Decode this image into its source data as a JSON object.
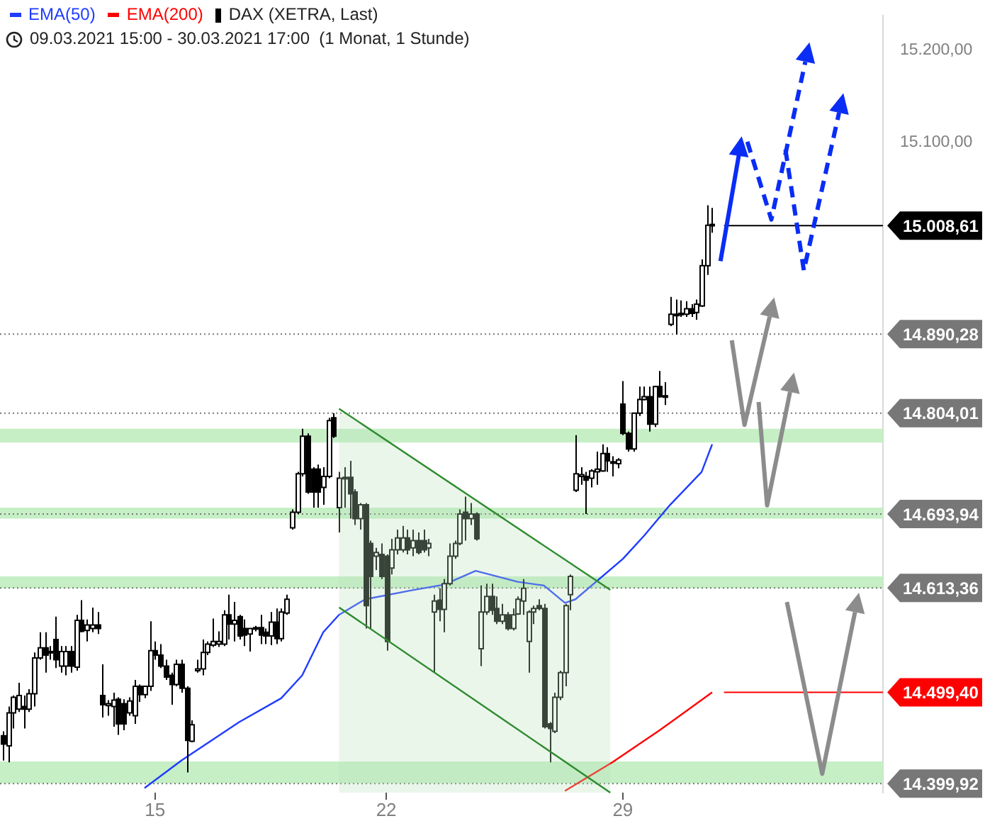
{
  "chart_data": {
    "type": "candlestick",
    "subtitle": "09.03.2021 15:00 - 30.03.2021 17:00  (1 Monat, 1 Stunde)",
    "categories": [
      null,
      null,
      null,
      null,
      null,
      null,
      null,
      null,
      null,
      null,
      null,
      null,
      null,
      null,
      null,
      null,
      null,
      null,
      null,
      null,
      null,
      null,
      null,
      null,
      null,
      null,
      null,
      null,
      null,
      "15",
      null,
      null,
      null,
      null,
      null,
      null,
      null,
      null,
      null,
      null,
      null,
      null,
      null,
      null,
      null,
      null,
      null,
      null,
      null,
      null,
      null,
      null,
      null,
      null,
      null,
      null,
      null,
      null,
      null,
      null,
      null,
      null,
      null,
      null,
      null,
      null,
      null,
      null,
      null,
      null,
      null,
      null,
      null,
      "22",
      null,
      null,
      null,
      null,
      null,
      null,
      null,
      null,
      null,
      null,
      null,
      null,
      null,
      null,
      null,
      null,
      null,
      null,
      null,
      null,
      null,
      null,
      null,
      null,
      null,
      null,
      null,
      null,
      null,
      null,
      null,
      null,
      null,
      null,
      null,
      null,
      null,
      null,
      null,
      null,
      null,
      null,
      null,
      null,
      "29",
      null,
      null,
      null,
      null,
      null,
      null,
      null,
      null,
      null,
      null,
      null,
      null,
      null,
      null,
      null,
      null,
      null,
      null,
      null,
      null,
      null,
      null,
      null,
      null,
      null,
      null,
      null,
      null,
      null,
      null,
      null,
      null,
      null,
      null,
      null,
      null,
      null,
      null,
      null,
      null,
      null,
      null,
      null,
      null,
      null,
      null,
      null,
      null,
      null
    ],
    "series": [
      {
        "name": "EMA(50)",
        "type": "line",
        "color": "#1f3cff",
        "values": [
          null,
          null,
          null,
          null,
          null,
          null,
          null,
          null,
          null,
          null,
          null,
          null,
          null,
          null,
          null,
          null,
          null,
          null,
          null,
          null,
          null,
          null,
          null,
          null,
          null,
          null,
          null,
          14395,
          null,
          null,
          null,
          null,
          null,
          null,
          14425,
          null,
          null,
          null,
          null,
          null,
          null,
          null,
          null,
          null,
          null,
          14467,
          null,
          null,
          null,
          null,
          null,
          null,
          null,
          14493,
          null,
          null,
          null,
          14518,
          null,
          null,
          null,
          14565,
          null,
          null,
          14584,
          null,
          null,
          null,
          null,
          14601,
          null,
          null,
          null,
          null,
          null,
          null,
          null,
          null,
          14611,
          null,
          null,
          null,
          null,
          null,
          14617,
          null,
          null,
          null,
          null,
          null,
          14632,
          null,
          null,
          null,
          null,
          null,
          null,
          null,
          14620,
          null,
          null,
          null,
          null,
          14616,
          null,
          null,
          null,
          14597,
          null,
          14601,
          null,
          null,
          null,
          null,
          null,
          null,
          null,
          null,
          14645,
          null,
          null,
          null,
          14670,
          null,
          null,
          null,
          null,
          14704,
          null,
          null,
          null,
          null,
          null,
          14740,
          null,
          14770,
          null,
          null,
          null,
          null,
          null,
          null,
          null,
          null,
          null,
          null,
          null,
          null,
          null,
          null,
          null,
          null,
          null,
          null,
          null,
          null,
          null,
          null,
          null,
          null,
          null,
          null,
          null,
          null,
          null,
          null,
          null,
          null
        ]
      },
      {
        "name": "EMA(200)",
        "type": "line",
        "color": "#ff0000",
        "values": [
          null,
          null,
          null,
          null,
          null,
          null,
          null,
          null,
          null,
          null,
          null,
          null,
          null,
          null,
          null,
          null,
          null,
          null,
          null,
          null,
          null,
          null,
          null,
          null,
          null,
          null,
          null,
          null,
          null,
          null,
          null,
          null,
          null,
          null,
          null,
          null,
          null,
          null,
          null,
          null,
          null,
          null,
          null,
          null,
          null,
          null,
          null,
          null,
          null,
          null,
          null,
          null,
          null,
          null,
          null,
          null,
          null,
          null,
          null,
          null,
          null,
          null,
          null,
          null,
          null,
          null,
          null,
          null,
          null,
          null,
          null,
          null,
          null,
          null,
          null,
          null,
          null,
          null,
          null,
          null,
          null,
          null,
          null,
          null,
          null,
          null,
          null,
          null,
          null,
          null,
          null,
          null,
          null,
          null,
          null,
          null,
          null,
          null,
          null,
          null,
          null,
          null,
          null,
          null,
          null,
          null,
          null,
          14392,
          null,
          null,
          null,
          null,
          null,
          null,
          null,
          null,
          14423,
          null,
          null,
          null,
          null,
          null,
          null,
          null,
          null,
          14458,
          null,
          null,
          null,
          null,
          null,
          null,
          null,
          null,
          null,
          14499.4,
          null,
          null,
          null,
          null,
          null,
          null,
          null,
          null,
          null,
          null,
          null,
          null,
          null,
          null,
          null,
          null,
          null,
          null,
          null,
          null,
          null,
          null,
          null,
          null,
          null,
          null,
          null,
          null,
          null,
          null,
          null,
          null
        ]
      },
      {
        "name": "DAX (XETRA, Last)",
        "type": "candlestick",
        "color": "#000000",
        "ohlc": [
          [
            14452,
            14457,
            14425,
            14443
          ],
          [
            14441,
            14484,
            14423,
            14477
          ],
          [
            14477,
            14496,
            14460,
            14494
          ],
          [
            14481,
            14510,
            14478,
            14496
          ],
          [
            14484,
            14496,
            14460,
            14481
          ],
          [
            14481,
            14503,
            14478,
            14498
          ],
          [
            14498,
            14543,
            14484,
            14537
          ],
          [
            14537,
            14565,
            14535,
            14548
          ],
          [
            14548,
            14565,
            14521,
            14540
          ],
          [
            14543,
            14550,
            14535,
            14544
          ],
          [
            14557,
            14582,
            14526,
            14535
          ],
          [
            14528,
            14550,
            14521,
            14544
          ],
          [
            14528,
            14550,
            14518,
            14544
          ],
          [
            14544,
            14550,
            14521,
            14528
          ],
          [
            14527,
            14584,
            14523,
            14578
          ],
          [
            14578,
            14600,
            14565,
            14566
          ],
          [
            14567,
            14579,
            14555,
            14573
          ],
          [
            14569,
            14592,
            14565,
            14573
          ],
          [
            14573,
            14587,
            14563,
            14569
          ],
          [
            14496,
            14530,
            14472,
            14486
          ],
          [
            14485,
            14491,
            14474,
            14487
          ],
          [
            14484,
            14499,
            14462,
            14491
          ],
          [
            14492,
            14494,
            14453,
            14465
          ],
          [
            14487,
            14492,
            14458,
            14465
          ],
          [
            14477,
            14494,
            14474,
            14490
          ],
          [
            14474,
            14513,
            14465,
            14506
          ],
          [
            14506,
            14508,
            14489,
            14497
          ],
          [
            14497,
            14506,
            14493,
            14506
          ],
          [
            14506,
            14577,
            14501,
            14545
          ],
          [
            14545,
            14555,
            14535,
            14540
          ],
          [
            14540,
            14552,
            14526,
            14528
          ],
          [
            14528,
            14535,
            14513,
            14516
          ],
          [
            14518,
            14521,
            14486,
            14508
          ],
          [
            14508,
            14535,
            14506,
            14530
          ],
          [
            14530,
            14535,
            14499,
            14504
          ],
          [
            14504,
            14506,
            14412,
            14447
          ],
          [
            14446,
            14469,
            14445,
            14464
          ],
          [
            14523,
            14535,
            14521,
            14525
          ],
          [
            14525,
            14557,
            14518,
            14543
          ],
          [
            14543,
            14555,
            14540,
            14552
          ],
          [
            14551,
            14580,
            14549,
            14555
          ],
          [
            14552,
            14566,
            14549,
            14555
          ],
          [
            14552,
            14589,
            14550,
            14584
          ],
          [
            14584,
            14606,
            14557,
            14574
          ],
          [
            14574,
            14598,
            14555,
            14578
          ],
          [
            14582,
            14584,
            14557,
            14561
          ],
          [
            14569,
            14579,
            14550,
            14562
          ],
          [
            14563,
            14569,
            14544,
            14569
          ],
          [
            14569,
            14572,
            14566,
            14570
          ],
          [
            14570,
            14584,
            14552,
            14562
          ],
          [
            14565,
            14569,
            14552,
            14561
          ],
          [
            14561,
            14587,
            14551,
            14576
          ],
          [
            14576,
            14591,
            14552,
            14558
          ],
          [
            14558,
            14591,
            14555,
            14587
          ],
          [
            14586,
            14606,
            14584,
            14601
          ],
          [
            14679,
            14699,
            14677,
            14696
          ],
          [
            14696,
            14740,
            14694,
            14738
          ],
          [
            14738,
            14787,
            14735,
            14779
          ],
          [
            14779,
            14782,
            14716,
            14718
          ],
          [
            14743,
            14745,
            14701,
            14718
          ],
          [
            14743,
            14748,
            14701,
            14718
          ],
          [
            14723,
            14745,
            14704,
            14735
          ],
          [
            14735,
            14799,
            14733,
            14796
          ],
          [
            14799,
            14804,
            14777,
            14779
          ],
          [
            14701,
            14740,
            14674,
            14733
          ],
          [
            14733,
            14745,
            14701,
            14734
          ],
          [
            14734,
            14752,
            14689,
            14716
          ],
          [
            14718,
            14721,
            14682,
            14689
          ],
          [
            14689,
            14706,
            14677,
            14704
          ],
          [
            14704,
            14706,
            14569,
            14594
          ],
          [
            14662,
            14665,
            14569,
            14626
          ],
          [
            14648,
            14657,
            14633,
            14652
          ],
          [
            14650,
            14662,
            14623,
            14626
          ],
          [
            14648,
            14650,
            14545,
            14555
          ],
          [
            14635,
            14667,
            14628,
            14655
          ],
          [
            14655,
            14677,
            14650,
            14668
          ],
          [
            14655,
            14681,
            14652,
            14668
          ],
          [
            14668,
            14677,
            14650,
            14655
          ],
          [
            14657,
            14677,
            14648,
            14665
          ],
          [
            14665,
            14674,
            14650,
            14652
          ],
          [
            14665,
            14677,
            14652,
            14655
          ],
          [
            14657,
            14667,
            14648,
            14662
          ],
          [
            14587,
            14606,
            14521,
            14599
          ],
          [
            14600,
            14613,
            14577,
            14590
          ],
          [
            14590,
            14623,
            14565,
            14618
          ],
          [
            14618,
            14662,
            14616,
            14648
          ],
          [
            14648,
            14665,
            14645,
            14662
          ],
          [
            14662,
            14699,
            14660,
            14694
          ],
          [
            14696,
            14713,
            14665,
            14689
          ],
          [
            14689,
            14706,
            14682,
            14694
          ],
          [
            14694,
            14696,
            14665,
            14667
          ],
          [
            14547,
            14616,
            14528,
            14587
          ],
          [
            14587,
            14618,
            14584,
            14604
          ],
          [
            14604,
            14618,
            14584,
            14589
          ],
          [
            14591,
            14604,
            14574,
            14577
          ],
          [
            14577,
            14596,
            14574,
            14584
          ],
          [
            14584,
            14587,
            14567,
            14569
          ],
          [
            14569,
            14591,
            14567,
            14584
          ],
          [
            14585,
            14604,
            14584,
            14601
          ],
          [
            14599,
            14623,
            14584,
            14613
          ],
          [
            14555,
            14589,
            14521,
            14587
          ],
          [
            14587,
            14594,
            14574,
            14591
          ],
          [
            14594,
            14601,
            14589,
            14591
          ],
          [
            14591,
            14596,
            14460,
            14462
          ],
          [
            14465,
            14467,
            14423,
            14460
          ],
          [
            14457,
            14499,
            14455,
            14494
          ],
          [
            14494,
            14523,
            14491,
            14521
          ],
          [
            14521,
            14596,
            14506,
            14594
          ],
          [
            14606,
            14628,
            14589,
            14626
          ],
          [
            14720,
            14780,
            14718,
            14738
          ],
          [
            14735,
            14745,
            14726,
            14737
          ],
          [
            14735,
            14740,
            14694,
            14731
          ],
          [
            14733,
            14743,
            14723,
            14741
          ],
          [
            14740,
            14762,
            14726,
            14743
          ],
          [
            14741,
            14770,
            14740,
            14760
          ],
          [
            14760,
            14767,
            14740,
            14752
          ],
          [
            14750,
            14757,
            14735,
            14751
          ],
          [
            14749,
            14755,
            14744,
            14753
          ],
          [
            14814,
            14839,
            14780,
            14782
          ],
          [
            14782,
            14784,
            14762,
            14765
          ],
          [
            14765,
            14804,
            14762,
            14804
          ],
          [
            14804,
            14833,
            14801,
            14819
          ],
          [
            14819,
            14833,
            14818,
            14822
          ],
          [
            14822,
            14833,
            14784,
            14792
          ],
          [
            14792,
            14834,
            14789,
            14833
          ],
          [
            14833,
            14850,
            14821,
            14822
          ],
          [
            14822,
            14838,
            14813,
            14823
          ],
          [
            14901,
            14931,
            14899,
            14912
          ],
          [
            14911,
            14928,
            14890,
            14912
          ],
          [
            14912,
            14927,
            14909,
            14913
          ],
          [
            14912,
            14926,
            14909,
            14918
          ],
          [
            14918,
            14923,
            14909,
            14913
          ],
          [
            14914,
            14928,
            14906,
            14923
          ],
          [
            14921,
            14972,
            14920,
            14965
          ],
          [
            14965,
            15031,
            14955,
            15009
          ],
          [
            15010,
            15028,
            15001,
            15008.61
          ],
          null,
          null,
          null,
          null,
          null,
          null,
          null,
          null,
          null,
          null,
          null,
          null,
          null,
          null,
          null,
          null,
          null,
          null,
          null,
          null,
          null,
          null,
          null,
          null,
          null,
          null,
          null,
          null,
          null,
          null,
          null,
          null
        ]
      }
    ],
    "ylim": [
      14390,
      15238
    ],
    "yticks": [
      {
        "value": 15200,
        "label": "15.200,00"
      },
      {
        "value": 15100,
        "label": "15.100,00"
      }
    ],
    "ref_lines": [
      {
        "axis": "y",
        "value": 15008.61,
        "label": "15.008,61",
        "color": "#000000"
      },
      {
        "axis": "y",
        "value": 14890.28,
        "label": "14.890,28",
        "color": "#777777",
        "line_style": "dotted"
      },
      {
        "axis": "y",
        "value": 14804.01,
        "label": "14.804,01",
        "color": "#777777",
        "line_style": "dotted"
      },
      {
        "axis": "y",
        "value": 14693.94,
        "label": "14.693,94",
        "color": "#777777",
        "line_style": "dotted"
      },
      {
        "axis": "y",
        "value": 14613.36,
        "label": "14.613,36",
        "color": "#777777",
        "line_style": "dotted"
      },
      {
        "axis": "y",
        "value": 14499.4,
        "label": "14.499,40",
        "color": "#ff0000"
      },
      {
        "axis": "y",
        "value": 14399.92,
        "label": "14.399,92",
        "color": "#777777",
        "line_style": "dotted"
      }
    ],
    "bands": [
      {
        "axis": "y",
        "from": 14400,
        "to": 14424,
        "color": "#c6efc6"
      },
      {
        "axis": "y",
        "from": 14613,
        "to": 14626,
        "color": "#c6efc6"
      },
      {
        "axis": "y",
        "from": 14689,
        "to": 14701,
        "color": "#c6efc6"
      },
      {
        "axis": "y",
        "from": 14772,
        "to": 14787,
        "color": "#c6efc6"
      }
    ],
    "legend": "top left"
  }
}
